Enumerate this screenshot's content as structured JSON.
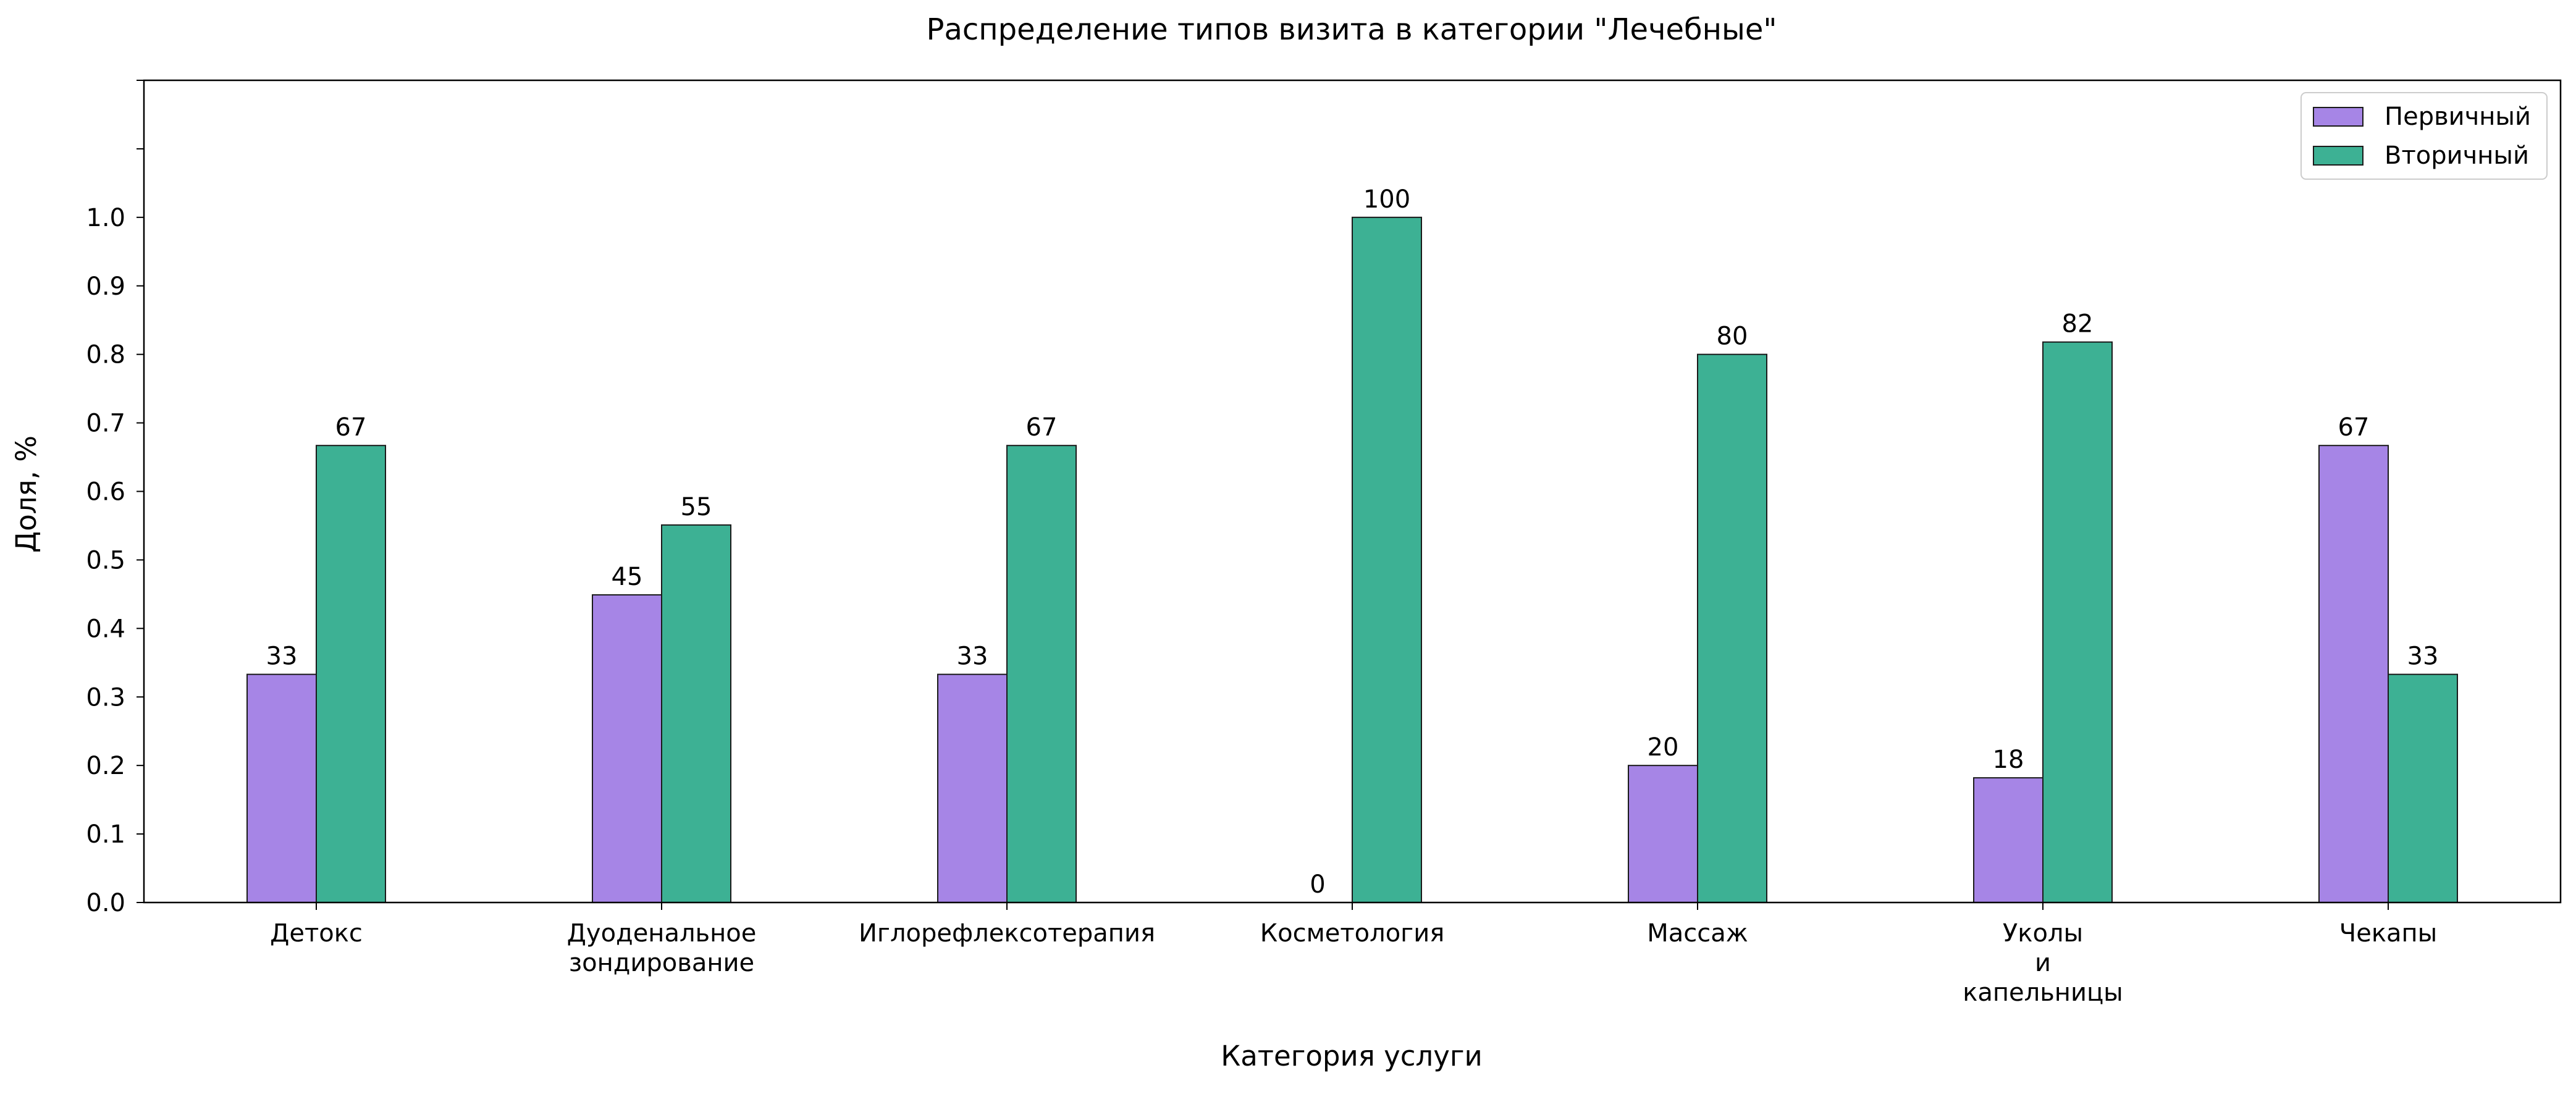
{
  "chart_data": {
    "type": "bar",
    "title": "Распределение типов визита в категории \"Лечебные\"",
    "xlabel": "Категория услуги",
    "ylabel": "Доля, %",
    "categories": [
      [
        "Детокс"
      ],
      [
        "Дуоденальное",
        "зондирование"
      ],
      [
        "Иглорефлексотерапия"
      ],
      [
        "Косметология"
      ],
      [
        "Массаж"
      ],
      [
        "Уколы",
        "и",
        "капельницы"
      ],
      [
        "Чекапы"
      ]
    ],
    "series": [
      {
        "name": "Первичный",
        "color": "#a685e6",
        "values": [
          0.333,
          0.449,
          0.333,
          0.0,
          0.2,
          0.182,
          0.667
        ],
        "labels": [
          "33",
          "45",
          "33",
          "0",
          "20",
          "18",
          "67"
        ]
      },
      {
        "name": "Вторичный",
        "color": "#3db194",
        "values": [
          0.667,
          0.551,
          0.667,
          1.0,
          0.8,
          0.818,
          0.333
        ],
        "labels": [
          "67",
          "55",
          "67",
          "100",
          "80",
          "82",
          "33"
        ]
      }
    ],
    "ylim": [
      0,
      1.2
    ],
    "yticks": [
      "0.0",
      "0.1",
      "0.2",
      "0.3",
      "0.4",
      "0.5",
      "0.6",
      "0.7",
      "0.8",
      "0.9",
      "1.0"
    ],
    "extra_unlabeled_ticks": [
      1.1,
      1.2
    ],
    "grid": false,
    "legend_position": "top-right"
  }
}
